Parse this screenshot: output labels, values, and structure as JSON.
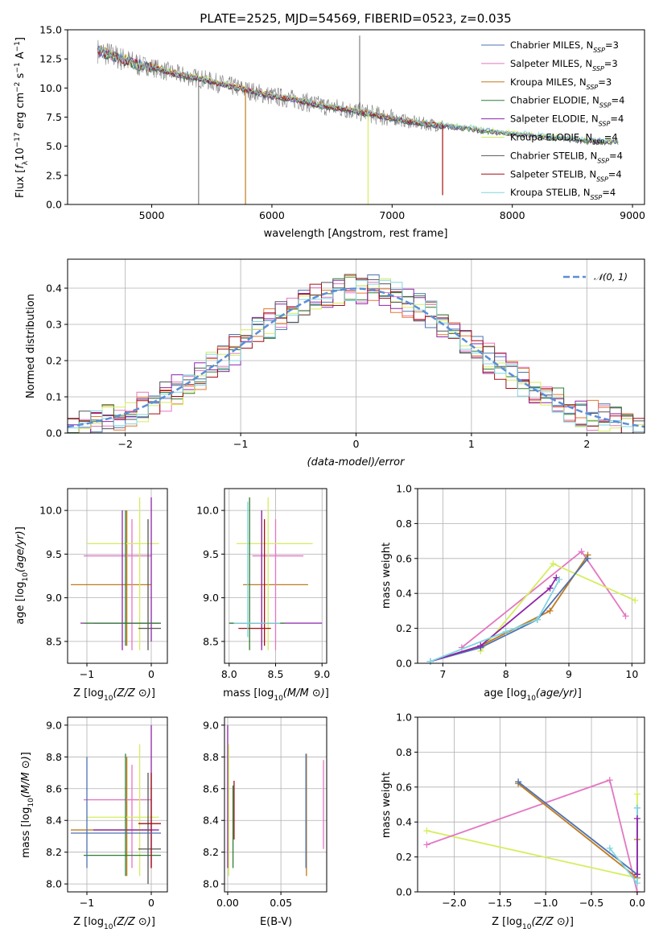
{
  "figure_title": "PLATE=2525, MJD=54569, FIBERID=0523, z=0.035",
  "colors": {
    "chabrier_miles": "#4c72b0",
    "salpeter_miles": "#e377c2",
    "kroupa_miles": "#c07a1e",
    "chabrier_elodie": "#2e7d32",
    "salpeter_elodie": "#8e24aa",
    "kroupa_elodie": "#d4ee5e",
    "chabrier_stelib": "#555555",
    "salpeter_stelib": "#a50f15",
    "kroupa_stelib": "#7fd6e0",
    "data": "#808080",
    "gauss": "#5b8ed6",
    "orange_hist": "#e8762d"
  },
  "chart_data": [
    {
      "type": "line",
      "id": "spectrum",
      "title": "PLATE=2525, MJD=54569, FIBERID=0523, z=0.035",
      "xlabel": "wavelength [Angstrom, rest frame]",
      "ylabel": "Flux [fλ10⁻¹⁷ erg cm⁻² s⁻¹ A⁻¹]",
      "xlim": [
        4300,
        9100
      ],
      "ylim": [
        0,
        15
      ],
      "xticks": [
        "5000",
        "6000",
        "7000",
        "8000",
        "9000"
      ],
      "yticks": [
        "0.0",
        "2.5",
        "5.0",
        "7.5",
        "10.0",
        "12.5",
        "15.0"
      ],
      "legend": [
        {
          "pre": "Chabrier MILES, N",
          "sub": "SSP",
          "post": "=3"
        },
        {
          "pre": "Salpeter MILES, N",
          "sub": "SSP",
          "post": "=3"
        },
        {
          "pre": "Kroupa MILES, N",
          "sub": "SSP",
          "post": "=3"
        },
        {
          "pre": "Chabrier ELODIE, N",
          "sub": "SSP",
          "post": "=4"
        },
        {
          "pre": "Salpeter ELODIE, N",
          "sub": "SSP",
          "post": "=4"
        },
        {
          "pre": "Kroupa ELODIE, N",
          "sub": "SSP",
          "post": "=4"
        },
        {
          "pre": "Chabrier STELIB, N",
          "sub": "SSP",
          "post": "=4"
        },
        {
          "pre": "Salpeter STELIB, N",
          "sub": "SSP",
          "post": "=4"
        },
        {
          "pre": "Kroupa STELIB, N",
          "sub": "SSP",
          "post": "=4"
        }
      ],
      "legend_position": "upper-right",
      "data_x": [
        4550,
        4700,
        4850,
        5000,
        5200,
        5400,
        5600,
        5800,
        6000,
        6200,
        6400,
        6600,
        6800,
        7000,
        7200,
        7400,
        7600,
        7800,
        8000,
        8200,
        8400,
        8600,
        8800
      ],
      "data_y": [
        13.2,
        12.7,
        12.1,
        11.8,
        11.2,
        10.8,
        10.3,
        9.8,
        9.3,
        9.0,
        8.5,
        8.2,
        7.8,
        7.4,
        7.0,
        6.8,
        6.6,
        6.3,
        6.1,
        5.9,
        5.7,
        5.5,
        5.4
      ],
      "dips": [
        {
          "x": 5390,
          "y": 0,
          "series": "data"
        },
        {
          "x": 5780,
          "y": 0,
          "series": "kroupa_miles"
        },
        {
          "x": 6730,
          "y": 14.5,
          "series": "data"
        },
        {
          "x": 6800,
          "y": 0,
          "series": "kroupa_elodie"
        },
        {
          "x": 7420,
          "y": 0.8,
          "series": "salpeter_stelib"
        }
      ]
    },
    {
      "type": "line",
      "id": "residuals",
      "xlabel": "(data-model)/error",
      "ylabel": "Normed distribution",
      "xlim": [
        -2.5,
        2.5
      ],
      "ylim": [
        0,
        0.48
      ],
      "xticks": [
        "−2",
        "−1",
        "0",
        "1",
        "2"
      ],
      "yticks": [
        "0.0",
        "0.1",
        "0.2",
        "0.3",
        "0.4"
      ],
      "legend": "𝒩(0, 1)",
      "legend_position": "upper-right",
      "gaussian": {
        "mean": 0,
        "sigma": 1
      }
    },
    {
      "type": "scatter",
      "id": "age_vs_Z",
      "xlabel": "Z [log₁₀(Z/Z⊙)]",
      "ylabel": "age  [log₁₀(age/yr)]",
      "xlim": [
        -1.3,
        0.25
      ],
      "ylim": [
        8.25,
        10.25
      ],
      "xticks": [
        "−1",
        "0"
      ],
      "yticks": [
        "8.5",
        "9.0",
        "9.5",
        "10.0"
      ],
      "points": [
        {
          "x": -0.38,
          "y": 9.15,
          "x_lo": -1.25,
          "x_hi": 0.0,
          "y_lo": 8.45,
          "y_hi": 10.0,
          "series": "kroupa_miles"
        },
        {
          "x": -0.3,
          "y": 9.48,
          "x_lo": -1.05,
          "x_hi": 0.0,
          "y_lo": 8.4,
          "y_hi": 9.9,
          "series": "salpeter_miles"
        },
        {
          "x": -0.18,
          "y": 9.62,
          "x_lo": -1.0,
          "x_hi": 0.12,
          "y_lo": 8.4,
          "y_hi": 10.15,
          "series": "kroupa_elodie"
        },
        {
          "x": -0.45,
          "y": 8.71,
          "x_lo": -1.1,
          "x_hi": 0.15,
          "y_lo": 8.4,
          "y_hi": 10.0,
          "series": "salpeter_elodie"
        },
        {
          "x": 0.0,
          "y": 8.71,
          "x_lo": -0.9,
          "x_hi": 0.12,
          "y_lo": 8.5,
          "y_hi": 10.15,
          "series": "salpeter_elodie"
        },
        {
          "x": -0.05,
          "y": 8.65,
          "x_lo": -0.2,
          "x_hi": 0.15,
          "y_lo": 8.4,
          "y_hi": 9.9,
          "series": "chabrier_stelib"
        },
        {
          "x": -0.4,
          "y": 8.71,
          "x_lo": -1.05,
          "x_hi": 0.15,
          "y_lo": 8.45,
          "y_hi": 10.0,
          "series": "chabrier_elodie"
        }
      ]
    },
    {
      "type": "scatter",
      "id": "age_vs_mass",
      "xlabel": "mass [log₁₀(M/M⊙)]",
      "ylabel": "",
      "xlim": [
        7.95,
        9.05
      ],
      "ylim": [
        8.25,
        10.25
      ],
      "xticks": [
        "8.0",
        "8.5",
        "9.0"
      ],
      "yticks": [
        "8.5",
        "9.0",
        "9.5",
        "10.0"
      ],
      "points": [
        {
          "x": 8.35,
          "y": 9.15,
          "x_lo": 8.15,
          "x_hi": 8.85,
          "y_lo": 8.45,
          "y_hi": 10.0,
          "series": "kroupa_miles"
        },
        {
          "x": 8.5,
          "y": 9.48,
          "x_lo": 8.25,
          "x_hi": 8.8,
          "y_lo": 8.4,
          "y_hi": 9.9,
          "series": "salpeter_miles"
        },
        {
          "x": 8.42,
          "y": 9.62,
          "x_lo": 8.08,
          "x_hi": 8.9,
          "y_lo": 8.4,
          "y_hi": 10.15,
          "series": "kroupa_elodie"
        },
        {
          "x": 8.35,
          "y": 8.71,
          "x_lo": 8.0,
          "x_hi": 9.0,
          "y_lo": 8.4,
          "y_hi": 10.0,
          "series": "salpeter_elodie"
        },
        {
          "x": 8.22,
          "y": 8.71,
          "x_lo": 8.0,
          "x_hi": 8.6,
          "y_lo": 8.4,
          "y_hi": 10.15,
          "series": "chabrier_elodie"
        },
        {
          "x": 8.38,
          "y": 8.65,
          "x_lo": 8.1,
          "x_hi": 8.45,
          "y_lo": 8.45,
          "y_hi": 9.9,
          "series": "salpeter_stelib"
        },
        {
          "x": 8.2,
          "y": 8.71,
          "x_lo": 8.05,
          "x_hi": 8.55,
          "y_lo": 8.55,
          "y_hi": 10.1,
          "series": "kroupa_stelib"
        }
      ]
    },
    {
      "type": "line",
      "id": "massweight_vs_age",
      "xlabel": "age  [log₁₀(age/yr)]",
      "ylabel": "mass weight",
      "xlim": [
        6.6,
        10.2
      ],
      "ylim": [
        0,
        1
      ],
      "xticks": [
        "7",
        "8",
        "9",
        "10"
      ],
      "yticks": [
        "0.0",
        "0.2",
        "0.4",
        "0.6",
        "0.8",
        "1.0"
      ],
      "series": [
        {
          "key": "salpeter_miles",
          "x": [
            7.3,
            9.2,
            9.9
          ],
          "y": [
            0.09,
            0.64,
            0.27
          ]
        },
        {
          "key": "kroupa_elodie",
          "x": [
            7.6,
            8.75,
            10.05
          ],
          "y": [
            0.07,
            0.57,
            0.36
          ]
        },
        {
          "key": "kroupa_miles",
          "x": [
            6.8,
            7.6,
            8.7,
            9.3
          ],
          "y": [
            0.01,
            0.1,
            0.3,
            0.62
          ]
        },
        {
          "key": "chabrier_miles",
          "x": [
            6.8,
            7.6,
            8.5,
            9.3
          ],
          "y": [
            0.01,
            0.09,
            0.25,
            0.6
          ]
        },
        {
          "key": "salpeter_elodie",
          "x": [
            6.8,
            7.6,
            8.7,
            8.8
          ],
          "y": [
            0.01,
            0.1,
            0.43,
            0.49
          ]
        },
        {
          "key": "kroupa_stelib",
          "x": [
            6.8,
            8.0,
            8.5,
            8.85
          ],
          "y": [
            0.01,
            0.18,
            0.25,
            0.48
          ]
        }
      ]
    },
    {
      "type": "scatter",
      "id": "mass_vs_Z",
      "xlabel": "Z [log₁₀(Z/Z⊙)]",
      "ylabel": "mass [log₁₀(M/M⊙)]",
      "xlim": [
        -1.3,
        0.25
      ],
      "ylim": [
        7.95,
        9.05
      ],
      "xticks": [
        "−1",
        "0"
      ],
      "yticks": [
        "8.0",
        "8.2",
        "8.4",
        "8.6",
        "8.8",
        "9.0"
      ],
      "points": [
        {
          "x": -0.38,
          "y": 8.34,
          "x_lo": -1.25,
          "x_hi": 0.0,
          "y_lo": 8.05,
          "y_hi": 8.8,
          "series": "kroupa_miles"
        },
        {
          "x": -0.3,
          "y": 8.53,
          "x_lo": -1.05,
          "x_hi": 0.0,
          "y_lo": 8.1,
          "y_hi": 8.75,
          "series": "salpeter_miles"
        },
        {
          "x": -0.18,
          "y": 8.42,
          "x_lo": -1.0,
          "x_hi": 0.12,
          "y_lo": 8.05,
          "y_hi": 8.88,
          "series": "kroupa_elodie"
        },
        {
          "x": 0.0,
          "y": 8.34,
          "x_lo": -0.9,
          "x_hi": 0.12,
          "y_lo": 8.1,
          "y_hi": 9.0,
          "series": "salpeter_elodie"
        },
        {
          "x": -0.4,
          "y": 8.18,
          "x_lo": -1.05,
          "x_hi": 0.15,
          "y_lo": 8.05,
          "y_hi": 8.82,
          "series": "chabrier_elodie"
        },
        {
          "x": -0.05,
          "y": 8.22,
          "x_lo": -0.2,
          "x_hi": 0.15,
          "y_lo": 8.0,
          "y_hi": 8.7,
          "series": "chabrier_stelib"
        },
        {
          "x": 0.0,
          "y": 8.38,
          "x_lo": -0.2,
          "x_hi": 0.15,
          "y_lo": 8.1,
          "y_hi": 8.7,
          "series": "salpeter_stelib"
        },
        {
          "x": -1.0,
          "y": 8.32,
          "x_lo": -1.25,
          "x_hi": 0.15,
          "y_lo": 8.1,
          "y_hi": 8.8,
          "series": "chabrier_miles"
        }
      ]
    },
    {
      "type": "scatter",
      "id": "mass_vs_ebv",
      "xlabel": "E(B-V)",
      "ylabel": "",
      "xlim": [
        -0.003,
        0.093
      ],
      "ylim": [
        7.95,
        9.05
      ],
      "xticks": [
        "0.00",
        "0.05"
      ],
      "yticks": [
        "8.0",
        "8.2",
        "8.4",
        "8.6",
        "8.8",
        "9.0"
      ],
      "points": [
        {
          "x": 0.0,
          "y": 8.9,
          "y_lo": 8.1,
          "y_hi": 9.0,
          "series": "salpeter_elodie"
        },
        {
          "x": 0.001,
          "y": 8.6,
          "y_lo": 8.05,
          "y_hi": 8.88,
          "series": "kroupa_elodie"
        },
        {
          "x": 0.006,
          "y": 8.45,
          "y_lo": 8.28,
          "y_hi": 8.65,
          "series": "salpeter_stelib"
        },
        {
          "x": 0.005,
          "y": 8.38,
          "y_lo": 8.1,
          "y_hi": 8.62,
          "series": "chabrier_elodie"
        },
        {
          "x": 0.074,
          "y": 8.4,
          "y_lo": 8.05,
          "y_hi": 8.82,
          "series": "kroupa_miles"
        },
        {
          "x": 0.0735,
          "y": 8.4,
          "y_lo": 8.1,
          "y_hi": 8.82,
          "series": "chabrier_miles"
        },
        {
          "x": 0.09,
          "y": 8.5,
          "y_lo": 8.22,
          "y_hi": 8.78,
          "series": "salpeter_miles"
        }
      ]
    },
    {
      "type": "line",
      "id": "massweight_vs_Z",
      "xlabel": "Z [log₁₀(Z/Z⊙)]",
      "ylabel": "mass weight",
      "xlim": [
        -2.4,
        0.08
      ],
      "ylim": [
        0,
        1
      ],
      "xticks": [
        "−2.0",
        "−1.5",
        "−1.0",
        "−0.5",
        "0.0"
      ],
      "yticks": [
        "0.0",
        "0.2",
        "0.4",
        "0.6",
        "0.8",
        "1.0"
      ],
      "series": [
        {
          "key": "kroupa_elodie",
          "x": [
            -2.3,
            0.0,
            0.0
          ],
          "y": [
            0.35,
            0.08,
            0.56
          ]
        },
        {
          "key": "salpeter_miles",
          "x": [
            -2.3,
            -0.3,
            0.0
          ],
          "y": [
            0.27,
            0.64,
            0.0
          ]
        },
        {
          "key": "kroupa_miles",
          "x": [
            -1.3,
            0.0,
            0.0
          ],
          "y": [
            0.62,
            0.08,
            0.3
          ]
        },
        {
          "key": "chabrier_miles",
          "x": [
            -1.3,
            0.0,
            0.0
          ],
          "y": [
            0.63,
            0.1,
            0.48
          ]
        },
        {
          "key": "kroupa_stelib",
          "x": [
            -0.3,
            0.0,
            0.0
          ],
          "y": [
            0.25,
            0.05,
            0.48
          ]
        },
        {
          "key": "salpeter_elodie",
          "x": [
            0.0,
            0.0
          ],
          "y": [
            0.1,
            0.42
          ]
        }
      ]
    }
  ]
}
